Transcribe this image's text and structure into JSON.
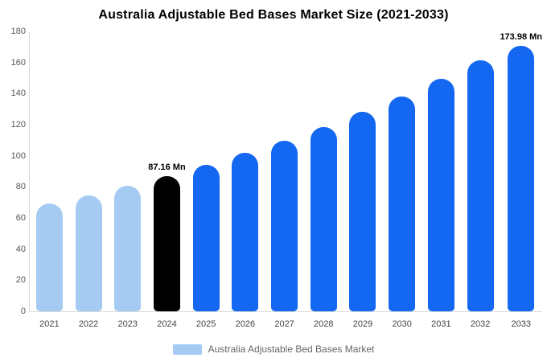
{
  "title": "Australia Adjustable Bed Bases Market Size (2021-2033)",
  "legend": {
    "label": "Australia Adjustable Bed Bases Market",
    "swatch_color": "#a5cbf3"
  },
  "colors": {
    "historical": "#a5cbf3",
    "base_year": "#000000",
    "forecast": "#1467f0",
    "axis_line": "#d9d9d9",
    "tick_text": "#555555"
  },
  "chart_data": {
    "type": "bar",
    "title": "Australia Adjustable Bed Bases Market Size (2021-2033)",
    "categories": [
      "2021",
      "2022",
      "2023",
      "2024",
      "2025",
      "2026",
      "2027",
      "2028",
      "2029",
      "2030",
      "2031",
      "2032",
      "2033"
    ],
    "values": [
      69.2,
      74.7,
      80.7,
      87.16,
      94.1,
      101.7,
      109.8,
      118.6,
      128.1,
      138.3,
      149.4,
      161.3,
      173.98
    ],
    "bar_colors": [
      "#a5cbf3",
      "#a5cbf3",
      "#a5cbf3",
      "#000000",
      "#1467f0",
      "#1467f0",
      "#1467f0",
      "#1467f0",
      "#1467f0",
      "#1467f0",
      "#1467f0",
      "#1467f0",
      "#1467f0"
    ],
    "annotations": [
      {
        "category": "2024",
        "text": "87.16 Mn"
      },
      {
        "category": "2033",
        "text": "173.98 Mn"
      }
    ],
    "xlabel": "",
    "ylabel": "",
    "ylim": [
      0,
      180
    ],
    "yticks": [
      0,
      20,
      40,
      60,
      80,
      100,
      120,
      140,
      160,
      180
    ],
    "grid": false,
    "legend_position": "bottom",
    "legend_entries": [
      "Australia Adjustable Bed Bases Market"
    ]
  }
}
